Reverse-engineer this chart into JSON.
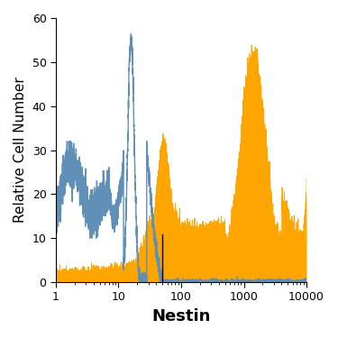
{
  "title": "",
  "xlabel": "Nestin",
  "ylabel": "Relative Cell Number",
  "xlim_log": [
    1,
    10000
  ],
  "ylim": [
    0,
    60
  ],
  "yticks": [
    0,
    10,
    20,
    30,
    40,
    50,
    60
  ],
  "blue_color": "#6090b8",
  "orange_color": "#FFA500",
  "vline_x": 50,
  "vline_color": "black",
  "vline_ymax": 0.18,
  "xlabel_fontsize": 13,
  "ylabel_fontsize": 11,
  "tick_fontsize": 9,
  "figsize": [
    3.75,
    3.75
  ],
  "dpi": 100
}
